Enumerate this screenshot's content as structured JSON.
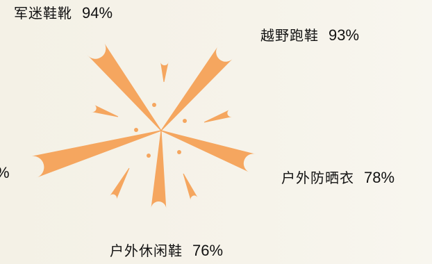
{
  "chart_data": {
    "type": "radial-bar",
    "colors": {
      "ray": "#f5a65f",
      "dot": "#f5a65f"
    },
    "categories": [
      "军迷鞋靴",
      "越野跑鞋",
      "户外防晒衣",
      "户外休闲鞋",
      ""
    ],
    "values": [
      94,
      93,
      78,
      76,
      null
    ],
    "value_labels": [
      "94%",
      "93%",
      "78%",
      "76%",
      "%"
    ]
  }
}
